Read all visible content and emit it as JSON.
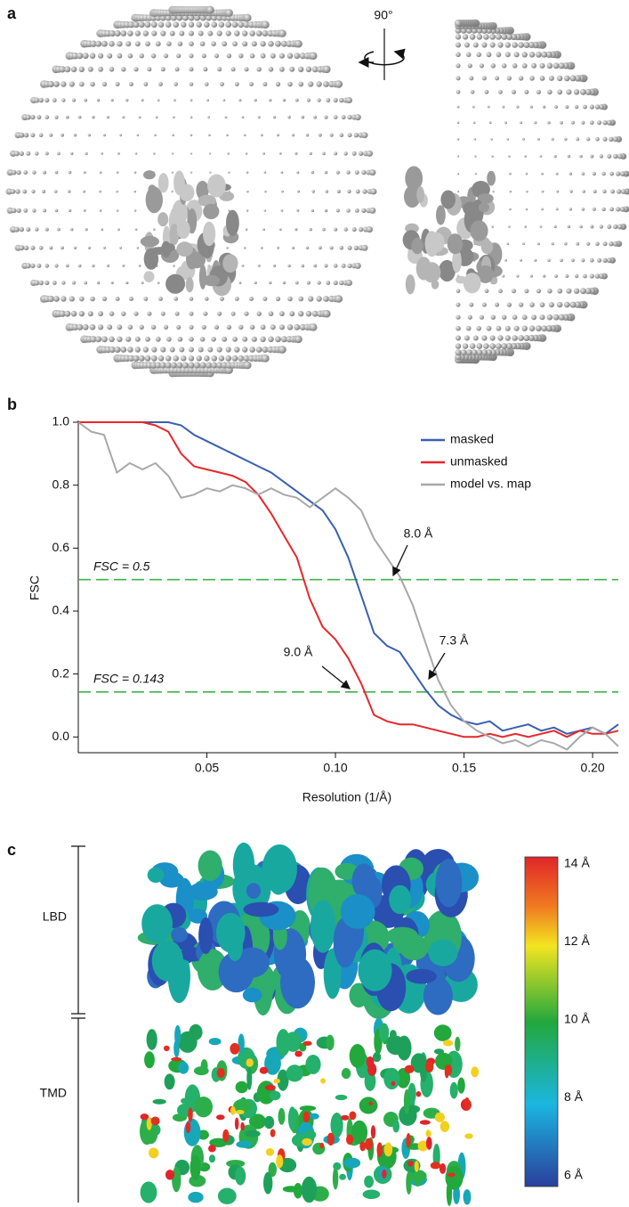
{
  "panels": {
    "a": {
      "label": "a",
      "rotation": "90°"
    },
    "c": {
      "label": "c",
      "domains": [
        "LBD",
        "TMD"
      ],
      "colorbar_labels": [
        "14 Å",
        "12 Å",
        "10 Å",
        "8 Å",
        "6 Å"
      ]
    }
  },
  "chart_data": {
    "type": "line",
    "panel_label": "b",
    "x_label": "Resolution (1/Å)",
    "y_label": "FSC",
    "x": [
      0,
      0.005,
      0.01,
      0.015,
      0.02,
      0.025,
      0.03,
      0.035,
      0.04,
      0.045,
      0.05,
      0.055,
      0.06,
      0.065,
      0.07,
      0.075,
      0.08,
      0.085,
      0.09,
      0.095,
      0.1,
      0.105,
      0.11,
      0.115,
      0.12,
      0.125,
      0.13,
      0.135,
      0.14,
      0.145,
      0.15,
      0.155,
      0.16,
      0.165,
      0.17,
      0.175,
      0.18,
      0.185,
      0.19,
      0.195,
      0.2,
      0.205,
      0.21
    ],
    "series": [
      {
        "name": "masked",
        "color": "#3a5fb0",
        "values": [
          1,
          1,
          1,
          1,
          1,
          1,
          1,
          1,
          0.99,
          0.96,
          0.94,
          0.92,
          0.9,
          0.88,
          0.86,
          0.84,
          0.81,
          0.78,
          0.75,
          0.72,
          0.66,
          0.57,
          0.45,
          0.33,
          0.29,
          0.27,
          0.21,
          0.15,
          0.1,
          0.07,
          0.05,
          0.04,
          0.05,
          0.02,
          0.03,
          0.04,
          0.02,
          0.03,
          0.01,
          0.02,
          0.03,
          0.01,
          0.04
        ]
      },
      {
        "name": "unmasked",
        "color": "#e8262b",
        "values": [
          1,
          1,
          1,
          1,
          1,
          1,
          0.99,
          0.97,
          0.9,
          0.86,
          0.85,
          0.84,
          0.83,
          0.81,
          0.77,
          0.71,
          0.64,
          0.57,
          0.44,
          0.35,
          0.31,
          0.25,
          0.17,
          0.07,
          0.05,
          0.04,
          0.04,
          0.03,
          0.02,
          0.01,
          0,
          0,
          0.01,
          0,
          0.01,
          0,
          0.01,
          0.02,
          0,
          0.02,
          0.01,
          0.01,
          0.02
        ]
      },
      {
        "name": "model vs. map",
        "color": "#a8a8a8",
        "values": [
          1,
          0.97,
          0.96,
          0.84,
          0.87,
          0.85,
          0.87,
          0.83,
          0.76,
          0.77,
          0.79,
          0.78,
          0.8,
          0.79,
          0.77,
          0.79,
          0.77,
          0.76,
          0.73,
          0.76,
          0.79,
          0.76,
          0.72,
          0.63,
          0.57,
          0.51,
          0.42,
          0.3,
          0.18,
          0.1,
          0.05,
          0.02,
          0,
          -0.02,
          -0.01,
          -0.03,
          -0.01,
          -0.02,
          -0.04,
          0,
          0.03,
          0.01,
          -0.03
        ]
      }
    ],
    "xlim": [
      0,
      0.21
    ],
    "ylim": [
      -0.05,
      1.0
    ],
    "xticks": [
      0.05,
      {
        "value": 0.1,
        "label": "0.10"
      },
      0.15,
      {
        "value": 0.2,
        "label": "0.20"
      }
    ],
    "yticks": [
      {
        "value": 0,
        "label": "0.0"
      },
      0.2,
      0.4,
      0.6,
      0.8,
      {
        "value": 1,
        "label": "1.0"
      }
    ],
    "thresholds": [
      {
        "value": 0.5,
        "label": "FSC = 0.5",
        "color": "#3cb54a"
      },
      {
        "value": 0.143,
        "label": "FSC = 0.143",
        "color": "#3cb54a"
      }
    ],
    "annotations": [
      "8.0 Å",
      "7.3 Å",
      "9.0 Å"
    ],
    "legend": "upper right"
  }
}
